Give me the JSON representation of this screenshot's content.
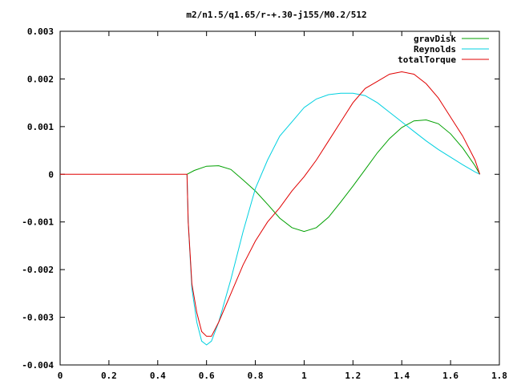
{
  "chart_data": {
    "type": "line",
    "title": "m2/n1.5/q1.65/r-+.30-j155/M0.2/512",
    "xlabel": "",
    "ylabel": "",
    "xlim": [
      0,
      1.8
    ],
    "ylim": [
      -0.004,
      0.003
    ],
    "grid": false,
    "legend_position": "top-right",
    "x_ticks": [
      0,
      0.2,
      0.4,
      0.6,
      0.8,
      1,
      1.2,
      1.4,
      1.6,
      1.8
    ],
    "x_tick_labels": [
      "0",
      "0.2",
      "0.4",
      "0.6",
      "0.8",
      "1",
      "1.2",
      "1.4",
      "1.6",
      "1.8"
    ],
    "y_ticks": [
      -0.004,
      -0.003,
      -0.002,
      -0.001,
      0,
      0.001,
      0.002,
      0.003
    ],
    "y_tick_labels": [
      "-0.004",
      "-0.003",
      "-0.002",
      "-0.001",
      "0",
      "0.001",
      "0.002",
      "0.003"
    ],
    "series": [
      {
        "name": "gravDisk",
        "color": "#00a000",
        "x": [
          0.52,
          0.55,
          0.6,
          0.65,
          0.7,
          0.75,
          0.8,
          0.85,
          0.9,
          0.95,
          1.0,
          1.05,
          1.1,
          1.15,
          1.2,
          1.25,
          1.3,
          1.35,
          1.4,
          1.45,
          1.5,
          1.55,
          1.6,
          1.65,
          1.7,
          1.72
        ],
        "y": [
          0.0,
          8e-05,
          0.00017,
          0.00018,
          0.0001,
          -0.00012,
          -0.00035,
          -0.00063,
          -0.00092,
          -0.00112,
          -0.0012,
          -0.00112,
          -0.0009,
          -0.00058,
          -0.00025,
          0.0001,
          0.00045,
          0.00075,
          0.00098,
          0.00112,
          0.00114,
          0.00106,
          0.00085,
          0.00055,
          0.00018,
          0.0
        ]
      },
      {
        "name": "Reynolds",
        "color": "#00d0e0",
        "x": [
          0.52,
          0.525,
          0.54,
          0.56,
          0.58,
          0.6,
          0.62,
          0.65,
          0.7,
          0.75,
          0.8,
          0.85,
          0.9,
          0.95,
          1.0,
          1.05,
          1.1,
          1.15,
          1.2,
          1.25,
          1.3,
          1.35,
          1.4,
          1.45,
          1.5,
          1.55,
          1.6,
          1.65,
          1.7,
          1.72
        ],
        "y": [
          0.0,
          -0.001,
          -0.0024,
          -0.0031,
          -0.0035,
          -0.00358,
          -0.0035,
          -0.0031,
          -0.0022,
          -0.0012,
          -0.0003,
          0.0003,
          0.0008,
          0.0011,
          0.0014,
          0.00158,
          0.00167,
          0.0017,
          0.0017,
          0.00165,
          0.0015,
          0.0013,
          0.0011,
          0.0009,
          0.0007,
          0.00052,
          0.00036,
          0.0002,
          5e-05,
          0.0
        ]
      },
      {
        "name": "totalTorque",
        "color": "#e00000",
        "x": [
          0.0,
          0.52,
          0.525,
          0.54,
          0.56,
          0.58,
          0.6,
          0.62,
          0.65,
          0.7,
          0.75,
          0.8,
          0.85,
          0.9,
          0.95,
          1.0,
          1.05,
          1.1,
          1.15,
          1.2,
          1.25,
          1.3,
          1.35,
          1.4,
          1.45,
          1.5,
          1.55,
          1.6,
          1.65,
          1.7,
          1.72
        ],
        "y": [
          0.0,
          0.0,
          -0.001,
          -0.0023,
          -0.0029,
          -0.0033,
          -0.0034,
          -0.0034,
          -0.0031,
          -0.0025,
          -0.0019,
          -0.0014,
          -0.001,
          -0.0007,
          -0.00035,
          -5e-05,
          0.0003,
          0.0007,
          0.0011,
          0.0015,
          0.0018,
          0.00195,
          0.0021,
          0.00215,
          0.0021,
          0.0019,
          0.0016,
          0.0012,
          0.0008,
          0.0003,
          0.0
        ]
      }
    ]
  }
}
